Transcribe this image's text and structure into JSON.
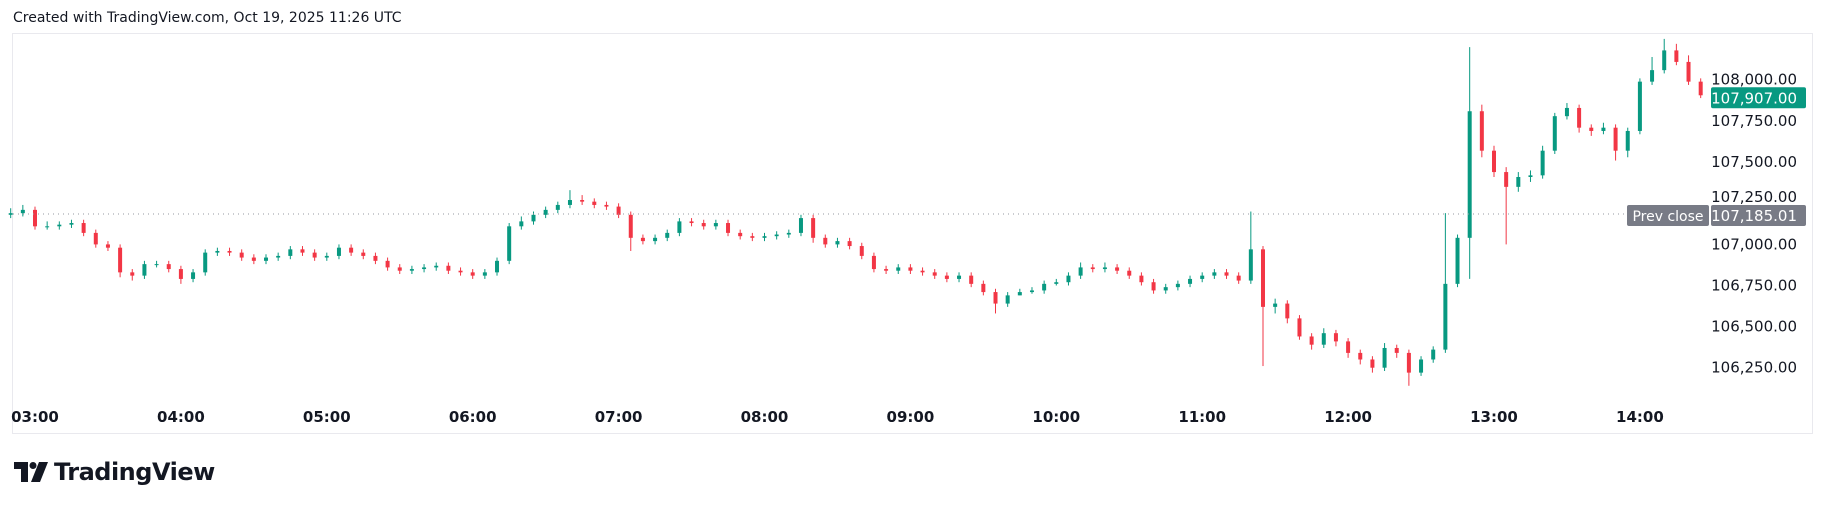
{
  "header": {
    "text": "Created with TradingView.com, Oct 19, 2025 11:26 UTC"
  },
  "logo": {
    "text": "TradingView"
  },
  "colors": {
    "up": "#089981",
    "down": "#f23645",
    "prev_close": "#787b86",
    "grid_text": "#131722"
  },
  "chart_data": {
    "type": "candlestick",
    "interval_minutes": 5,
    "first_candle_time": "02:50",
    "x_ticks": [
      "03:00",
      "04:00",
      "05:00",
      "06:00",
      "07:00",
      "08:00",
      "09:00",
      "10:00",
      "11:00",
      "12:00",
      "13:00",
      "14:00"
    ],
    "y_ticks": [
      "108,000.00",
      "107,750.00",
      "107,500.00",
      "107,250.00",
      "107,000.00",
      "106,750.00",
      "106,500.00",
      "106,250.00"
    ],
    "y_tick_values": [
      108000,
      107750,
      107500,
      107250,
      107000,
      106750,
      106500,
      106250
    ],
    "prev_close": {
      "label": "Prev close",
      "value": 107185.01,
      "value_text": "107,185.01"
    },
    "last_price": {
      "value": 107907.0,
      "value_text": "107,907.00"
    },
    "candles_ohlc": [
      [
        107180,
        107220,
        107160,
        107190
      ],
      [
        107190,
        107240,
        107170,
        107210
      ],
      [
        107210,
        107230,
        107090,
        107110
      ],
      [
        107110,
        107140,
        107090,
        107110
      ],
      [
        107110,
        107140,
        107090,
        107120
      ],
      [
        107120,
        107150,
        107100,
        107130
      ],
      [
        107130,
        107150,
        107050,
        107070
      ],
      [
        107070,
        107090,
        106980,
        107000
      ],
      [
        107000,
        107020,
        106960,
        106980
      ],
      [
        106980,
        107000,
        106800,
        106830
      ],
      [
        106830,
        106850,
        106780,
        106810
      ],
      [
        106810,
        106900,
        106790,
        106880
      ],
      [
        106880,
        106900,
        106860,
        106880
      ],
      [
        106880,
        106900,
        106830,
        106850
      ],
      [
        106850,
        106870,
        106760,
        106790
      ],
      [
        106790,
        106850,
        106770,
        106830
      ],
      [
        106830,
        106970,
        106810,
        106950
      ],
      [
        106950,
        106980,
        106930,
        106960
      ],
      [
        106960,
        106980,
        106930,
        106950
      ],
      [
        106950,
        106970,
        106900,
        106920
      ],
      [
        106920,
        106940,
        106880,
        106900
      ],
      [
        106900,
        106940,
        106880,
        106920
      ],
      [
        106920,
        106950,
        106900,
        106930
      ],
      [
        106930,
        106990,
        106910,
        106970
      ],
      [
        106970,
        106990,
        106930,
        106950
      ],
      [
        106950,
        106970,
        106900,
        106920
      ],
      [
        106920,
        106950,
        106900,
        106930
      ],
      [
        106930,
        107000,
        106910,
        106980
      ],
      [
        106980,
        107000,
        106930,
        106950
      ],
      [
        106950,
        106970,
        106910,
        106930
      ],
      [
        106930,
        106950,
        106880,
        106900
      ],
      [
        106900,
        106920,
        106840,
        106860
      ],
      [
        106860,
        106880,
        106820,
        106840
      ],
      [
        106840,
        106870,
        106820,
        106850
      ],
      [
        106850,
        106880,
        106830,
        106860
      ],
      [
        106860,
        106890,
        106840,
        106870
      ],
      [
        106870,
        106890,
        106820,
        106840
      ],
      [
        106840,
        106860,
        106810,
        106830
      ],
      [
        106830,
        106850,
        106790,
        106810
      ],
      [
        106810,
        106850,
        106790,
        106830
      ],
      [
        106830,
        106920,
        106810,
        106900
      ],
      [
        106900,
        107130,
        106880,
        107110
      ],
      [
        107110,
        107170,
        107090,
        107140
      ],
      [
        107140,
        107200,
        107120,
        107180
      ],
      [
        107180,
        107230,
        107160,
        107210
      ],
      [
        107210,
        107260,
        107190,
        107240
      ],
      [
        107240,
        107330,
        107220,
        107270
      ],
      [
        107270,
        107300,
        107240,
        107260
      ],
      [
        107260,
        107280,
        107220,
        107240
      ],
      [
        107240,
        107260,
        107210,
        107230
      ],
      [
        107230,
        107250,
        107160,
        107180
      ],
      [
        107180,
        107200,
        106960,
        107040
      ],
      [
        107040,
        107060,
        107000,
        107020
      ],
      [
        107020,
        107060,
        107000,
        107040
      ],
      [
        107040,
        107090,
        107020,
        107070
      ],
      [
        107070,
        107160,
        107050,
        107140
      ],
      [
        107140,
        107160,
        107110,
        107130
      ],
      [
        107130,
        107150,
        107090,
        107110
      ],
      [
        107110,
        107150,
        107090,
        107130
      ],
      [
        107130,
        107150,
        107050,
        107070
      ],
      [
        107070,
        107090,
        107030,
        107050
      ],
      [
        107050,
        107070,
        107020,
        107040
      ],
      [
        107040,
        107070,
        107020,
        107050
      ],
      [
        107050,
        107080,
        107030,
        107060
      ],
      [
        107060,
        107090,
        107040,
        107070
      ],
      [
        107070,
        107180,
        107050,
        107160
      ],
      [
        107160,
        107180,
        107010,
        107040
      ],
      [
        107040,
        107060,
        106980,
        107000
      ],
      [
        107000,
        107040,
        106980,
        107020
      ],
      [
        107020,
        107040,
        106970,
        106990
      ],
      [
        106990,
        107010,
        106910,
        106930
      ],
      [
        106930,
        106950,
        106830,
        106850
      ],
      [
        106850,
        106870,
        106820,
        106840
      ],
      [
        106840,
        106880,
        106820,
        106860
      ],
      [
        106860,
        106880,
        106820,
        106840
      ],
      [
        106840,
        106860,
        106810,
        106830
      ],
      [
        106830,
        106850,
        106790,
        106810
      ],
      [
        106810,
        106830,
        106770,
        106790
      ],
      [
        106790,
        106830,
        106770,
        106810
      ],
      [
        106810,
        106830,
        106740,
        106760
      ],
      [
        106760,
        106780,
        106690,
        106710
      ],
      [
        106710,
        106730,
        106580,
        106640
      ],
      [
        106640,
        106710,
        106620,
        106690
      ],
      [
        106690,
        106730,
        106690,
        106710
      ],
      [
        106710,
        106740,
        106700,
        106720
      ],
      [
        106720,
        106780,
        106700,
        106760
      ],
      [
        106760,
        106790,
        106750,
        106770
      ],
      [
        106770,
        106830,
        106750,
        106810
      ],
      [
        106810,
        106890,
        106790,
        106860
      ],
      [
        106860,
        106880,
        106830,
        106850
      ],
      [
        106850,
        106890,
        106830,
        106860
      ],
      [
        106860,
        106880,
        106820,
        106840
      ],
      [
        106840,
        106860,
        106790,
        106810
      ],
      [
        106810,
        106830,
        106750,
        106770
      ],
      [
        106770,
        106790,
        106700,
        106720
      ],
      [
        106720,
        106760,
        106700,
        106740
      ],
      [
        106740,
        106780,
        106720,
        106760
      ],
      [
        106760,
        106810,
        106740,
        106790
      ],
      [
        106790,
        106830,
        106770,
        106810
      ],
      [
        106810,
        106850,
        106790,
        106830
      ],
      [
        106830,
        106850,
        106790,
        106810
      ],
      [
        106810,
        106830,
        106760,
        106780
      ],
      [
        106780,
        107200,
        106760,
        106970
      ],
      [
        106970,
        106990,
        106260,
        106620
      ],
      [
        106620,
        106670,
        106580,
        106640
      ],
      [
        106640,
        106660,
        106520,
        106550
      ],
      [
        106550,
        106570,
        106420,
        106440
      ],
      [
        106440,
        106460,
        106360,
        106390
      ],
      [
        106390,
        106490,
        106370,
        106460
      ],
      [
        106460,
        106480,
        106380,
        106410
      ],
      [
        106410,
        106430,
        106310,
        106340
      ],
      [
        106340,
        106360,
        106270,
        106300
      ],
      [
        106300,
        106320,
        106220,
        106250
      ],
      [
        106250,
        106400,
        106230,
        106370
      ],
      [
        106370,
        106390,
        106310,
        106340
      ],
      [
        106340,
        106360,
        106140,
        106220
      ],
      [
        106220,
        106320,
        106200,
        106300
      ],
      [
        106300,
        106380,
        106280,
        106360
      ],
      [
        106360,
        107190,
        106340,
        106760
      ],
      [
        106760,
        107060,
        106740,
        107040
      ],
      [
        107040,
        108200,
        106790,
        107810
      ],
      [
        107810,
        107850,
        107530,
        107570
      ],
      [
        107570,
        107600,
        107410,
        107440
      ],
      [
        107440,
        107470,
        107000,
        107350
      ],
      [
        107350,
        107440,
        107320,
        107410
      ],
      [
        107410,
        107450,
        107380,
        107420
      ],
      [
        107420,
        107600,
        107400,
        107570
      ],
      [
        107570,
        107800,
        107550,
        107780
      ],
      [
        107780,
        107860,
        107760,
        107830
      ],
      [
        107830,
        107850,
        107680,
        107710
      ],
      [
        107710,
        107730,
        107660,
        107690
      ],
      [
        107690,
        107740,
        107670,
        107710
      ],
      [
        107710,
        107730,
        107510,
        107570
      ],
      [
        107570,
        107710,
        107530,
        107690
      ],
      [
        107690,
        108010,
        107670,
        107990
      ],
      [
        107990,
        108140,
        107970,
        108060
      ],
      [
        108060,
        108250,
        108040,
        108180
      ],
      [
        108180,
        108220,
        108090,
        108110
      ],
      [
        108110,
        108150,
        107970,
        107990
      ],
      [
        107990,
        108010,
        107890,
        107907
      ]
    ]
  }
}
